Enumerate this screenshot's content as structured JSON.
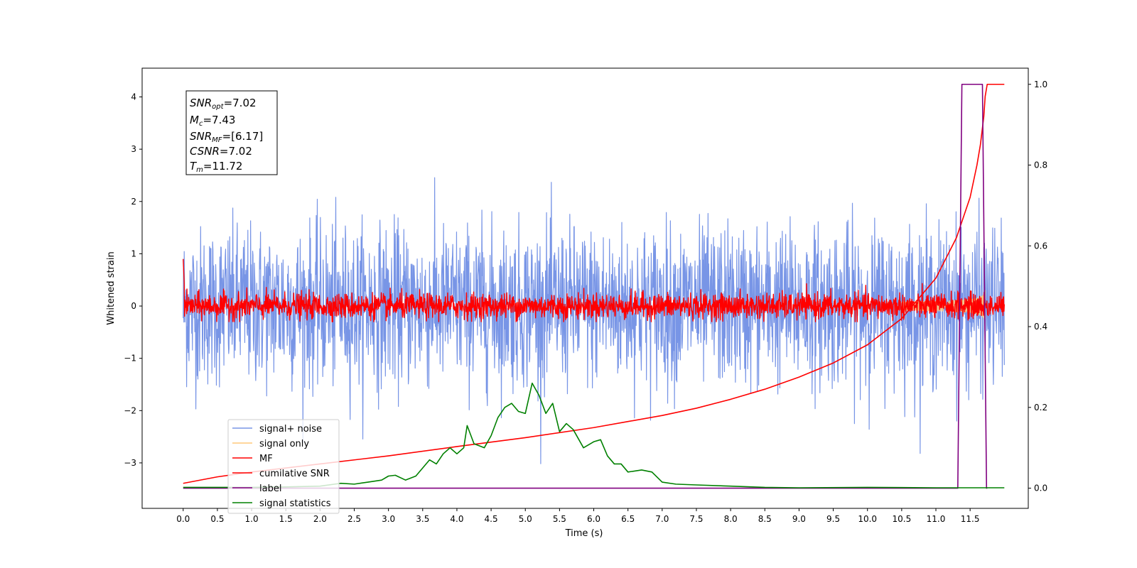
{
  "chart_data": {
    "type": "line",
    "xlabel": "Time (s)",
    "ylabel": "Whitened strain",
    "xlim": [
      -0.6,
      12.35
    ],
    "ylim": [
      -3.87,
      4.55
    ],
    "y2lim": [
      -0.05,
      1.04
    ],
    "x_ticks": [
      "0.0",
      "0.5",
      "1.0",
      "1.5",
      "2.0",
      "2.5",
      "3.0",
      "3.5",
      "4.0",
      "4.5",
      "5.0",
      "5.5",
      "6.0",
      "6.5",
      "7.0",
      "7.5",
      "8.0",
      "8.5",
      "9.0",
      "9.5",
      "10.0",
      "10.5",
      "11.0",
      "11.5"
    ],
    "y_ticks": [
      "4",
      "3",
      "2",
      "1",
      "0",
      "−1",
      "−2",
      "−3"
    ],
    "y2_ticks": [
      "1.0",
      "0.8",
      "0.6",
      "0.4",
      "0.2",
      "0.0"
    ],
    "grid": false,
    "legend_position": "lower-left",
    "annotation": {
      "snr_opt": {
        "base": "SNR",
        "sub": "opt",
        "value": "=7.02"
      },
      "mc": {
        "base": "M",
        "sub": "c",
        "value": "=7.43"
      },
      "snr_mf": {
        "base": "SNR",
        "sub": "MF",
        "value": "=[6.17]"
      },
      "csnr": {
        "base": "CSNR",
        "value": "=7.02"
      },
      "tm": {
        "base": "T",
        "sub": "m",
        "value": "=11.72"
      }
    },
    "series": [
      {
        "name": "signal+ noise",
        "color": "#7895e6",
        "axis": "left",
        "kind": "noise",
        "duration": 12.0,
        "std": 0.75
      },
      {
        "name": "signal only",
        "color": "#ffc87a",
        "axis": "left",
        "kind": "chirp",
        "t_merge": 11.72,
        "peak_amplitude": 0.45
      },
      {
        "name": "MF",
        "color": "#ff0000",
        "axis": "left",
        "kind": "noise",
        "duration": 12.0,
        "std": 0.12
      },
      {
        "name": "cumilative SNR",
        "color": "#ff0000",
        "axis": "right",
        "points": [
          [
            0.0,
            0.012
          ],
          [
            0.5,
            0.028
          ],
          [
            1.0,
            0.04
          ],
          [
            2.0,
            0.06
          ],
          [
            3.0,
            0.08
          ],
          [
            4.0,
            0.103
          ],
          [
            5.0,
            0.125
          ],
          [
            6.0,
            0.15
          ],
          [
            6.5,
            0.165
          ],
          [
            7.0,
            0.18
          ],
          [
            7.5,
            0.198
          ],
          [
            8.0,
            0.22
          ],
          [
            8.5,
            0.245
          ],
          [
            9.0,
            0.275
          ],
          [
            9.5,
            0.31
          ],
          [
            10.0,
            0.355
          ],
          [
            10.5,
            0.42
          ],
          [
            11.0,
            0.52
          ],
          [
            11.3,
            0.62
          ],
          [
            11.5,
            0.72
          ],
          [
            11.6,
            0.8
          ],
          [
            11.65,
            0.85
          ],
          [
            11.7,
            0.92
          ],
          [
            11.72,
            0.97
          ],
          [
            11.75,
            1.0
          ],
          [
            12.0,
            1.0
          ]
        ]
      },
      {
        "name": "label",
        "color": "#800080",
        "axis": "right",
        "points": [
          [
            0.0,
            0.0
          ],
          [
            11.32,
            0.0
          ],
          [
            11.38,
            1.0
          ],
          [
            11.68,
            1.0
          ],
          [
            11.74,
            0.0
          ],
          [
            11.75,
            0.0
          ]
        ]
      },
      {
        "name": "signal statistics",
        "color": "#008000",
        "axis": "right",
        "points": [
          [
            0.0,
            0.002
          ],
          [
            1.0,
            0.002
          ],
          [
            1.5,
            0.003
          ],
          [
            2.0,
            0.005
          ],
          [
            2.3,
            0.012
          ],
          [
            2.5,
            0.01
          ],
          [
            2.7,
            0.015
          ],
          [
            2.9,
            0.02
          ],
          [
            3.0,
            0.03
          ],
          [
            3.1,
            0.032
          ],
          [
            3.25,
            0.02
          ],
          [
            3.4,
            0.03
          ],
          [
            3.5,
            0.05
          ],
          [
            3.6,
            0.07
          ],
          [
            3.7,
            0.06
          ],
          [
            3.8,
            0.085
          ],
          [
            3.9,
            0.1
          ],
          [
            4.0,
            0.085
          ],
          [
            4.1,
            0.1
          ],
          [
            4.15,
            0.155
          ],
          [
            4.25,
            0.11
          ],
          [
            4.4,
            0.1
          ],
          [
            4.5,
            0.13
          ],
          [
            4.6,
            0.175
          ],
          [
            4.7,
            0.2
          ],
          [
            4.8,
            0.21
          ],
          [
            4.9,
            0.19
          ],
          [
            5.0,
            0.185
          ],
          [
            5.1,
            0.26
          ],
          [
            5.2,
            0.23
          ],
          [
            5.3,
            0.185
          ],
          [
            5.4,
            0.21
          ],
          [
            5.5,
            0.14
          ],
          [
            5.6,
            0.16
          ],
          [
            5.7,
            0.145
          ],
          [
            5.85,
            0.1
          ],
          [
            6.0,
            0.115
          ],
          [
            6.1,
            0.12
          ],
          [
            6.2,
            0.08
          ],
          [
            6.3,
            0.06
          ],
          [
            6.4,
            0.06
          ],
          [
            6.5,
            0.04
          ],
          [
            6.7,
            0.045
          ],
          [
            6.85,
            0.04
          ],
          [
            7.0,
            0.015
          ],
          [
            7.2,
            0.01
          ],
          [
            7.5,
            0.008
          ],
          [
            8.0,
            0.005
          ],
          [
            8.5,
            0.002
          ],
          [
            9.0,
            0.001
          ],
          [
            10.0,
            0.002
          ],
          [
            11.0,
            0.001
          ],
          [
            12.0,
            0.001
          ]
        ]
      }
    ]
  }
}
